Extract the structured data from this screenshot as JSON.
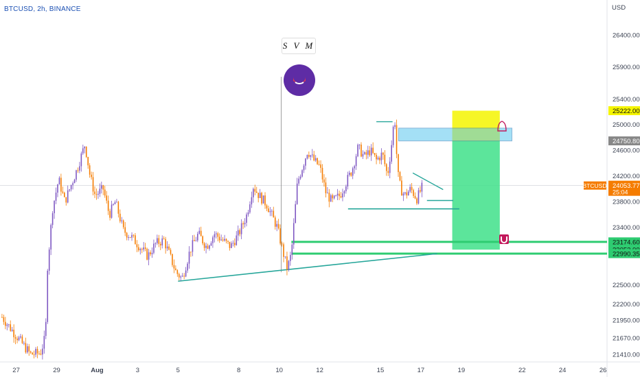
{
  "header": {
    "title": "BTCUSD, 2h, BINANCE"
  },
  "watermark": {
    "label": "S V M"
  },
  "colors": {
    "up": "#7e57c2",
    "down": "#f57c00",
    "axis_text": "#3b4252",
    "grid": "#ffffff",
    "target_zone": "#40e08a",
    "stop_zone": "#f5f500",
    "entry_zone": "#5bc7f0",
    "levels": "#2ecc71",
    "trendline": "#26a69a",
    "price_tag": "#f57c00"
  },
  "chart_data": {
    "type": "candlestick",
    "symbol": "BTCUSD",
    "timeframe": "2h",
    "exchange": "BINANCE",
    "yunit": "USD",
    "ylim": [
      21300,
      26950
    ],
    "y_ticks": [
      26400,
      25900,
      25400,
      25000,
      24600,
      24200,
      23800,
      23400,
      22500,
      22200,
      21950,
      21670,
      21410
    ],
    "x_ticks": [
      {
        "label": "27",
        "d": -4.0
      },
      {
        "label": "29",
        "d": -2.0
      },
      {
        "label": "Aug",
        "d": 0.0
      },
      {
        "label": "3",
        "d": 2.0
      },
      {
        "label": "5",
        "d": 4.0
      },
      {
        "label": "8",
        "d": 7.0
      },
      {
        "label": "10",
        "d": 9.0
      },
      {
        "label": "12",
        "d": 11.0
      },
      {
        "label": "15",
        "d": 14.0
      },
      {
        "label": "17",
        "d": 16.0
      },
      {
        "label": "19",
        "d": 18.0
      },
      {
        "label": "22",
        "d": 21.0
      },
      {
        "label": "24",
        "d": 23.0
      },
      {
        "label": "26",
        "d": 25.0
      }
    ],
    "xlim_days": [
      -4.8,
      25.2
    ],
    "close_path": [
      [
        -4.7,
        22000
      ],
      [
        -3.3,
        21420
      ],
      [
        -2.8,
        21440
      ],
      [
        -2.55,
        21700
      ],
      [
        -2.45,
        22800
      ],
      [
        -2.2,
        23700
      ],
      [
        -1.9,
        24150
      ],
      [
        -1.6,
        23800
      ],
      [
        -1.3,
        24050
      ],
      [
        -1.0,
        24300
      ],
      [
        -0.6,
        24700
      ],
      [
        -0.35,
        24200
      ],
      [
        -0.1,
        23900
      ],
      [
        0.3,
        24000
      ],
      [
        0.6,
        23600
      ],
      [
        0.9,
        23800
      ],
      [
        1.3,
        23350
      ],
      [
        1.7,
        23250
      ],
      [
        2.1,
        23100
      ],
      [
        2.5,
        22950
      ],
      [
        2.9,
        23150
      ],
      [
        3.3,
        23200
      ],
      [
        3.6,
        22950
      ],
      [
        3.9,
        22700
      ],
      [
        4.2,
        22600
      ],
      [
        4.6,
        23050
      ],
      [
        5.0,
        23300
      ],
      [
        5.4,
        23100
      ],
      [
        5.8,
        23300
      ],
      [
        6.2,
        23200
      ],
      [
        6.6,
        23100
      ],
      [
        7.0,
        23300
      ],
      [
        7.4,
        23600
      ],
      [
        7.7,
        24050
      ],
      [
        8.0,
        23900
      ],
      [
        8.4,
        23750
      ],
      [
        8.9,
        23400
      ],
      [
        9.2,
        23000
      ],
      [
        9.4,
        22750
      ],
      [
        9.6,
        23000
      ],
      [
        9.9,
        24100
      ],
      [
        10.1,
        24300
      ],
      [
        10.4,
        24600
      ],
      [
        10.7,
        24450
      ],
      [
        11.0,
        24350
      ],
      [
        11.3,
        23950
      ],
      [
        11.6,
        23800
      ],
      [
        12.0,
        23900
      ],
      [
        12.3,
        24100
      ],
      [
        12.6,
        24300
      ],
      [
        12.9,
        24650
      ],
      [
        13.2,
        24500
      ],
      [
        13.5,
        24600
      ],
      [
        13.8,
        24450
      ],
      [
        14.1,
        24550
      ],
      [
        14.35,
        24200
      ],
      [
        14.55,
        24700
      ],
      [
        14.7,
        25150
      ],
      [
        14.85,
        24250
      ],
      [
        15.0,
        24000
      ],
      [
        15.2,
        23900
      ],
      [
        15.5,
        24000
      ],
      [
        15.8,
        23850
      ],
      [
        16.1,
        24053
      ]
    ],
    "price_tags": [
      {
        "value": 25222.0,
        "label": "25222.00",
        "kind": "stop"
      },
      {
        "value": 24750.8,
        "label": "24750.80",
        "kind": "entry"
      },
      {
        "value": 24053.77,
        "label": "24053.77",
        "symbol": "BTCUSD",
        "countdown": "25:04",
        "kind": "last"
      },
      {
        "value": 23174.6,
        "label": "23174.60",
        "kind": "level"
      },
      {
        "value": 23053.0,
        "label": "23053.00",
        "kind": "level"
      },
      {
        "value": 22990.35,
        "label": "22990.35",
        "kind": "level"
      }
    ],
    "drawings": {
      "trendline": [
        [
          4.0,
          22560
        ],
        [
          16.8,
          22990
        ]
      ],
      "support_lines": [
        [
          [
            12.4,
            23690
          ],
          [
            17.9,
            23690
          ]
        ],
        [
          [
            16.3,
            23820
          ],
          [
            17.6,
            23820
          ]
        ]
      ],
      "resistance_short": [
        [
          13.8,
          25050
        ],
        [
          14.6,
          25050
        ]
      ],
      "wedge_line": [
        [
          15.6,
          24250
        ],
        [
          17.1,
          23990
        ]
      ],
      "vline": 9.1,
      "level_lines": [
        23174.6,
        22990.35
      ],
      "level_line_start": 9.6,
      "long_position": {
        "x0": 17.55,
        "x1": 19.9,
        "entry": 24750.8,
        "stop": 25222.0,
        "target": 23053.0
      },
      "entry_zone": {
        "x0": 14.9,
        "x1": 20.5,
        "y0": 24750,
        "y1": 24950
      }
    }
  }
}
